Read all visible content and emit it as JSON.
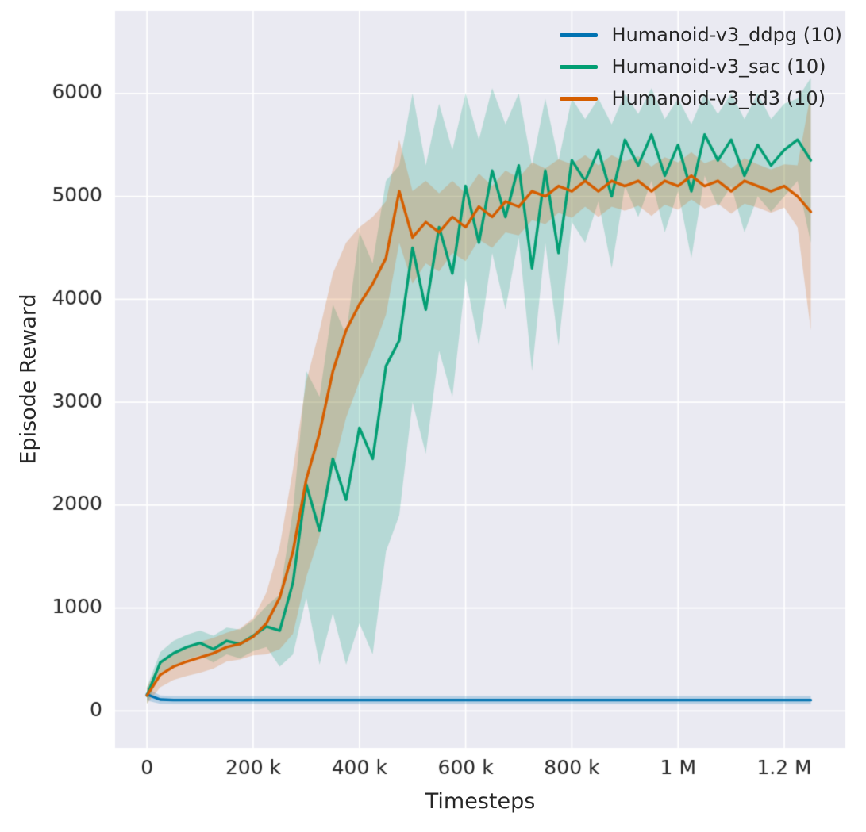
{
  "figure": {
    "background": "#eaeaf2",
    "grid_color": "#ffffff",
    "text_color": "#262626",
    "band_alpha": 0.22
  },
  "chart_data": {
    "type": "line",
    "title": "",
    "xlabel": "Timesteps",
    "ylabel": "Episode Reward",
    "grid": true,
    "legend_position": "top-right",
    "xlim": [
      -60000,
      1315000
    ],
    "ylim": [
      -360,
      6800
    ],
    "x_ticks": [
      {
        "v": 0,
        "label": "0"
      },
      {
        "v": 200000,
        "label": "200 k"
      },
      {
        "v": 400000,
        "label": "400 k"
      },
      {
        "v": 600000,
        "label": "600 k"
      },
      {
        "v": 800000,
        "label": "800 k"
      },
      {
        "v": 1000000,
        "label": "1 M"
      },
      {
        "v": 1200000,
        "label": "1.2 M"
      }
    ],
    "y_ticks": [
      {
        "v": 0,
        "label": "0"
      },
      {
        "v": 1000,
        "label": "1000"
      },
      {
        "v": 2000,
        "label": "2000"
      },
      {
        "v": 3000,
        "label": "3000"
      },
      {
        "v": 4000,
        "label": "4000"
      },
      {
        "v": 5000,
        "label": "5000"
      },
      {
        "v": 6000,
        "label": "6000"
      }
    ],
    "x": [
      0,
      25000,
      50000,
      75000,
      100000,
      125000,
      150000,
      175000,
      200000,
      225000,
      250000,
      275000,
      300000,
      325000,
      350000,
      375000,
      400000,
      425000,
      450000,
      475000,
      500000,
      525000,
      550000,
      575000,
      600000,
      625000,
      650000,
      675000,
      700000,
      725000,
      750000,
      775000,
      800000,
      825000,
      850000,
      875000,
      900000,
      925000,
      950000,
      975000,
      1000000,
      1025000,
      1050000,
      1075000,
      1100000,
      1125000,
      1150000,
      1175000,
      1200000,
      1225000,
      1250000
    ],
    "series": [
      {
        "name": "Humanoid-v3_ddpg (10)",
        "color": "#0173b2",
        "values": [
          160,
          110,
          105,
          105,
          105,
          105,
          105,
          105,
          105,
          105,
          105,
          105,
          105,
          105,
          105,
          105,
          105,
          105,
          105,
          105,
          105,
          105,
          105,
          105,
          105,
          105,
          105,
          105,
          105,
          105,
          105,
          105,
          105,
          105,
          105,
          105,
          105,
          105,
          105,
          105,
          105,
          105,
          105,
          105,
          105,
          105,
          105,
          105,
          105,
          105,
          105
        ],
        "spread": [
          60,
          40,
          40,
          40,
          40,
          40,
          40,
          40,
          40,
          40,
          40,
          40,
          40,
          40,
          40,
          40,
          40,
          40,
          40,
          40,
          40,
          40,
          40,
          40,
          40,
          40,
          40,
          40,
          40,
          40,
          40,
          40,
          40,
          40,
          40,
          40,
          40,
          40,
          40,
          40,
          40,
          40,
          40,
          40,
          40,
          40,
          40,
          40,
          40,
          40,
          40
        ]
      },
      {
        "name": "Humanoid-v3_sac (10)",
        "color": "#029e73",
        "values": [
          150,
          470,
          560,
          620,
          660,
          600,
          680,
          650,
          730,
          820,
          780,
          1250,
          2200,
          1750,
          2450,
          2050,
          2750,
          2450,
          3350,
          3600,
          4500,
          3900,
          4700,
          4250,
          5100,
          4550,
          5250,
          4800,
          5300,
          4300,
          5250,
          4450,
          5350,
          5150,
          5450,
          5000,
          5550,
          5300,
          5600,
          5200,
          5500,
          5050,
          5600,
          5350,
          5550,
          5200,
          5500,
          5300,
          5450,
          5550,
          5350
        ],
        "spread": [
          80,
          100,
          120,
          120,
          120,
          130,
          130,
          140,
          150,
          200,
          350,
          700,
          1100,
          1300,
          1500,
          1600,
          1900,
          1900,
          1800,
          1700,
          1500,
          1400,
          1200,
          1200,
          900,
          1000,
          800,
          900,
          700,
          1000,
          700,
          900,
          600,
          600,
          500,
          700,
          450,
          500,
          450,
          550,
          450,
          650,
          400,
          450,
          450,
          550,
          500,
          450,
          450,
          400,
          800
        ]
      },
      {
        "name": "Humanoid-v3_td3 (10)",
        "color": "#d55e00",
        "values": [
          150,
          350,
          430,
          480,
          520,
          560,
          620,
          650,
          720,
          850,
          1100,
          1550,
          2250,
          2700,
          3300,
          3700,
          3950,
          4150,
          4400,
          5050,
          4600,
          4750,
          4650,
          4800,
          4700,
          4900,
          4800,
          4950,
          4900,
          5050,
          5000,
          5100,
          5050,
          5150,
          5050,
          5150,
          5100,
          5150,
          5050,
          5150,
          5100,
          5200,
          5100,
          5150,
          5050,
          5150,
          5100,
          5050,
          5100,
          5000,
          4850
        ],
        "spread": [
          80,
          120,
          130,
          140,
          150,
          150,
          140,
          150,
          180,
          300,
          500,
          800,
          950,
          1000,
          950,
          850,
          750,
          650,
          550,
          500,
          450,
          400,
          380,
          350,
          330,
          320,
          300,
          300,
          280,
          280,
          270,
          260,
          260,
          250,
          250,
          250,
          240,
          240,
          240,
          230,
          230,
          230,
          220,
          220,
          220,
          220,
          210,
          210,
          210,
          300,
          1150
        ]
      }
    ]
  }
}
